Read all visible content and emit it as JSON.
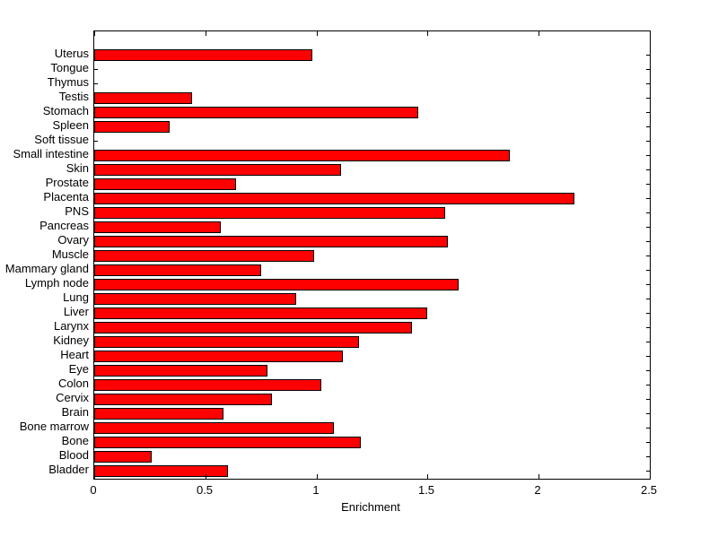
{
  "chart_data": {
    "type": "bar",
    "orientation": "horizontal",
    "title": "",
    "xlabel": "Enrichment",
    "ylabel": "",
    "xlim": [
      0,
      2.5
    ],
    "xtick_values": [
      0,
      0.5,
      1,
      1.5,
      2,
      2.5
    ],
    "xtick_labels": [
      "0",
      "0.5",
      "1",
      "1.5",
      "2",
      "2.5"
    ],
    "grid": false,
    "legend": null,
    "bar_color": "#FF0000",
    "bar_edge_color": "#000000",
    "background_color": "#FFFFFF",
    "categories_top_to_bottom": [
      "Uterus",
      "Tongue",
      "Thymus",
      "Testis",
      "Stomach",
      "Spleen",
      "Soft tissue",
      "Small intestine",
      "Skin",
      "Prostate",
      "Placenta",
      "PNS",
      "Pancreas",
      "Ovary",
      "Muscle",
      "Mammary gland",
      "Lymph node",
      "Lung",
      "Liver",
      "Larynx",
      "Kidney",
      "Heart",
      "Eye",
      "Colon",
      "Cervix",
      "Brain",
      "Bone marrow",
      "Bone",
      "Blood",
      "Bladder"
    ],
    "values_top_to_bottom": [
      0.98,
      0,
      0,
      0.44,
      1.46,
      0.34,
      0,
      1.87,
      1.11,
      0.64,
      2.16,
      1.58,
      0.57,
      1.59,
      0.99,
      0.75,
      1.64,
      0.91,
      1.5,
      1.43,
      1.19,
      1.12,
      0.78,
      1.02,
      0.8,
      0.58,
      1.08,
      1.2,
      0.26,
      0.6
    ]
  }
}
